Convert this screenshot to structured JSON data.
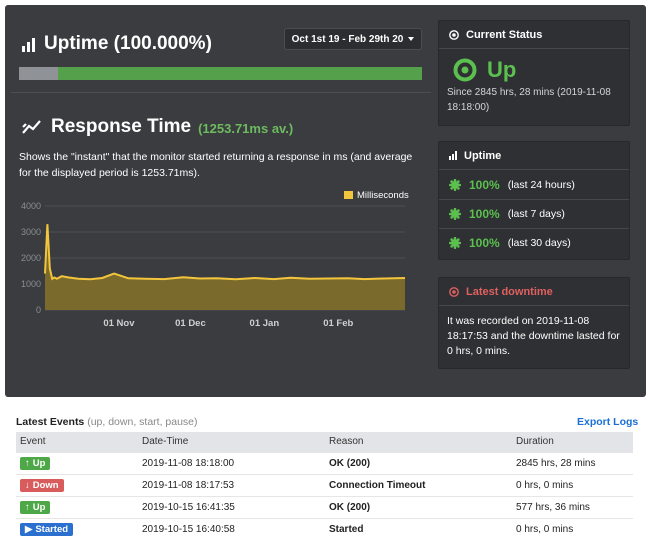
{
  "uptime": {
    "title": "Uptime (100.000%)",
    "date_range": "Oct 1st 19 - Feb 29th 20",
    "progress_up_fraction": 0.903
  },
  "response_time": {
    "title": "Response Time",
    "average": "(1253.71ms av.)",
    "description": "Shows the \"instant\" that the monitor started returning a response in ms (and average for the displayed period is 1253.71ms)."
  },
  "chart_data": {
    "type": "area",
    "series": [
      {
        "name": "Milliseconds",
        "color": "#f2c53d",
        "x": [
          "2019-10-01",
          "2019-10-02",
          "2019-10-03",
          "2019-10-04",
          "2019-10-05",
          "2019-10-06",
          "2019-10-08",
          "2019-10-11",
          "2019-10-15",
          "2019-10-20",
          "2019-10-25",
          "2019-10-30",
          "2019-11-05",
          "2019-11-12",
          "2019-11-20",
          "2019-11-28",
          "2019-12-05",
          "2019-12-12",
          "2019-12-20",
          "2019-12-28",
          "2020-01-05",
          "2020-01-12",
          "2020-01-20",
          "2020-01-28",
          "2020-02-05",
          "2020-02-12",
          "2020-02-20",
          "2020-02-29"
        ],
        "values": [
          1400,
          3300,
          1600,
          1200,
          1250,
          1200,
          1300,
          1250,
          1200,
          1180,
          1230,
          1400,
          1220,
          1200,
          1190,
          1260,
          1210,
          1220,
          1180,
          1230,
          1190,
          1240,
          1200,
          1210,
          1220,
          1190,
          1210,
          1230
        ]
      }
    ],
    "x_tick_labels": [
      "01 Nov",
      "01 Dec",
      "01 Jan",
      "01 Feb"
    ],
    "x_tick_dates": [
      "2019-11-01",
      "2019-12-01",
      "2020-01-01",
      "2020-02-01"
    ],
    "y_ticks": [
      0,
      1000,
      2000,
      3000,
      4000
    ],
    "x_range": [
      "2019-10-01",
      "2020-02-29"
    ],
    "ylim": [
      0,
      4000
    ],
    "legend_position": "top-right",
    "grid": "horizontal"
  },
  "current_status": {
    "title": "Current Status",
    "state": "Up",
    "since": "Since 2845 hrs, 28 mins (2019-11-08 18:18:00)"
  },
  "uptime_panel": {
    "title": "Uptime",
    "rows": [
      {
        "pct": "100%",
        "label": "(last 24 hours)"
      },
      {
        "pct": "100%",
        "label": "(last 7 days)"
      },
      {
        "pct": "100%",
        "label": "(last 30 days)"
      }
    ]
  },
  "latest_downtime": {
    "title": "Latest downtime",
    "text": "It was recorded on 2019-11-08 18:17:53 and the downtime lasted for 0 hrs, 0 mins."
  },
  "events": {
    "title": "Latest Events",
    "hint": "(up, down, start, pause)",
    "export_label": "Export Logs",
    "columns": [
      "Event",
      "Date-Time",
      "Reason",
      "Duration"
    ],
    "rows": [
      {
        "event": "Up",
        "datetime": "2019-11-08 18:18:00",
        "reason": "OK (200)",
        "duration": "2845 hrs, 28 mins"
      },
      {
        "event": "Down",
        "datetime": "2019-11-08 18:17:53",
        "reason": "Connection Timeout",
        "duration": "0 hrs, 0 mins"
      },
      {
        "event": "Up",
        "datetime": "2019-10-15 16:41:35",
        "reason": "OK (200)",
        "duration": "577 hrs, 36 mins"
      },
      {
        "event": "Started",
        "datetime": "2019-10-15 16:40:58",
        "reason": "Started",
        "duration": "0 hrs, 0 mins"
      }
    ]
  },
  "colors": {
    "panel_bg": "#3a3c3f",
    "up_green": "#5cc04f",
    "down_red": "#d95c5c",
    "started_blue": "#2b6fcf",
    "chart_line": "#f2c53d",
    "chart_fill": "#7d6d2a",
    "link_blue": "#1b6fd3"
  }
}
